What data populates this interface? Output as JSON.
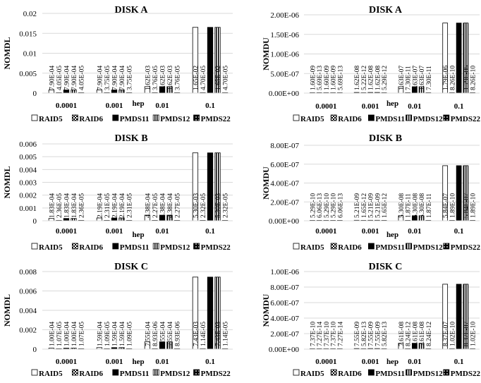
{
  "legend_names": [
    "RAID5",
    "RAID6",
    "PMDS11",
    "PMDS12",
    "PMDS22"
  ],
  "colors": {
    "axis": "#d9d9d9",
    "bar_stroke": "#000000",
    "solid": "#000000",
    "white": "#ffffff"
  },
  "chart_data": [
    {
      "type": "bar",
      "title": "DISK A",
      "ylabel": "NOMDL",
      "xlabel": "hep",
      "categories": [
        "0.0001",
        "0.001",
        "0.01",
        "0.1"
      ],
      "ylim": [
        0,
        0.02
      ],
      "yticks": [
        "0",
        "0.005",
        "0.01",
        "0.015",
        "0.02"
      ],
      "ytick_values": [
        0,
        0.005,
        0.01,
        0.015,
        0.02
      ],
      "legend": "bottom",
      "series": [
        {
          "name": "RAID5",
          "values": [
            0.00079,
            0.00079,
            0.00162,
            0.0165
          ],
          "labels": [
            "7.90E-04",
            "7.90E-04",
            "1.62E-03",
            "1.65E-02"
          ]
        },
        {
          "name": "RAID6",
          "values": [
            4.05e-05,
            3.75e-05,
            3.76e-05,
            4.7e-05
          ],
          "labels": [
            "4.05E-05",
            "3.75E-05",
            "3.76E-05",
            "4.70E-05"
          ]
        },
        {
          "name": "PMDS11",
          "values": [
            0.00079,
            0.00079,
            0.00162,
            0.0165
          ],
          "labels": [
            "7.90E-04",
            "7.90E-04",
            "1.62E-03",
            "1.65E-02"
          ]
        },
        {
          "name": "PMDS12",
          "values": [
            0.00079,
            0.00079,
            0.00162,
            0.0165
          ],
          "labels": [
            "7.90E-04",
            "7.90E-04",
            "1.62E-03",
            "1.65E-02"
          ]
        },
        {
          "name": "PMDS22",
          "values": [
            4.05e-05,
            3.75e-05,
            3.76e-05,
            4.7e-05
          ],
          "labels": [
            "4.05E-05",
            "3.75E-05",
            "3.76E-05",
            "4.70E-05"
          ]
        }
      ]
    },
    {
      "type": "bar",
      "title": "DISK A",
      "ylabel": "NOMDU",
      "xlabel": "hep",
      "categories": [
        "0.0001",
        "0.001",
        "0.01",
        "0.1"
      ],
      "ylim": [
        0,
        2e-06
      ],
      "yticks": [
        "0.00E+00",
        "5.00E-07",
        "1.00E-06",
        "1.50E-06",
        "2.00E-06"
      ],
      "ytick_values": [
        0,
        5e-07,
        1e-06,
        1.5e-06,
        2e-06
      ],
      "legend": "bottom",
      "series": [
        {
          "name": "RAID5",
          "values": [
            1.6e-09,
            1.62e-08,
            1.63e-07,
            1.79e-06
          ],
          "labels": [
            "1.60E-09",
            "1.62E-08",
            "1.63E-07",
            "1.79E-06"
          ]
        },
        {
          "name": "RAID6",
          "values": [
            5.69e-13,
            5.22e-12,
            7.3e-11,
            8.26e-10
          ],
          "labels": [
            "5.69E-13",
            "5.22E-12",
            "7.30E-11",
            "8.26E-10"
          ]
        },
        {
          "name": "PMDS11",
          "values": [
            1.6e-09,
            1.62e-08,
            1.63e-07,
            1.79e-06
          ],
          "labels": [
            "1.60E-09",
            "1.62E-08",
            "1.63E-07",
            "1.79E-06"
          ]
        },
        {
          "name": "PMDS12",
          "values": [
            1.6e-09,
            1.62e-08,
            1.63e-07,
            1.79e-06
          ],
          "labels": [
            "1.60E-09",
            "1.62E-08",
            "1.63E-07",
            "1.79E-06"
          ]
        },
        {
          "name": "PMDS22",
          "values": [
            5.69e-13,
            5.29e-12,
            7.3e-11,
            8.26e-10
          ],
          "labels": [
            "5.69E-13",
            "5.29E-12",
            "7.30E-11",
            "8.26E-10"
          ]
        }
      ]
    },
    {
      "type": "bar",
      "title": "DISK B",
      "ylabel": "NOMDL",
      "xlabel": "hep",
      "categories": [
        "0.0001",
        "0.001",
        "0.01",
        "0.1"
      ],
      "ylim": [
        0,
        0.006
      ],
      "yticks": [
        "0",
        "0.001",
        "0.002",
        "0.003",
        "0.004",
        "0.005",
        "0.006"
      ],
      "ytick_values": [
        0,
        0.001,
        0.002,
        0.003,
        0.004,
        0.005,
        0.006
      ],
      "legend": "bottom",
      "series": [
        {
          "name": "RAID5",
          "values": [
            0.000183,
            0.000219,
            0.000438,
            0.0053
          ],
          "labels": [
            "1.83E-04",
            "2.19E-04",
            "4.38E-04",
            "5.30E-03"
          ]
        },
        {
          "name": "RAID6",
          "values": [
            2.36e-05,
            2.31e-05,
            2.27e-05,
            2.32e-05
          ],
          "labels": [
            "2.36E-05",
            "2.31E-05",
            "2.27E-05",
            "2.32E-05"
          ]
        },
        {
          "name": "PMDS11",
          "values": [
            0.000183,
            0.000219,
            0.000438,
            0.0053
          ],
          "labels": [
            "1.83E-04",
            "2.19E-04",
            "4.38E-04",
            "5.30E-03"
          ]
        },
        {
          "name": "PMDS12",
          "values": [
            0.000183,
            0.000219,
            0.000438,
            0.0053
          ],
          "labels": [
            "1.83E-04",
            "2.19E-04",
            "4.38E-04",
            "5.30E-03"
          ]
        },
        {
          "name": "PMDS22",
          "values": [
            2.36e-05,
            2.31e-05,
            2.27e-05,
            2.32e-05
          ],
          "labels": [
            "2.36E-05",
            "2.31E-05",
            "2.27E-05",
            "2.32E-05"
          ]
        }
      ]
    },
    {
      "type": "bar",
      "title": "DISK B",
      "ylabel": "NOMDU",
      "xlabel": "hep",
      "categories": [
        "0.0001",
        "0.001",
        "0.01",
        "0.1"
      ],
      "ylim": [
        0,
        8e-07
      ],
      "yticks": [
        "0.00E+00",
        "2.00E-07",
        "4.00E-07",
        "6.00E-07",
        "8.00E-07"
      ],
      "ytick_values": [
        0,
        2e-07,
        4e-07,
        6e-07,
        8e-07
      ],
      "legend": "bottom",
      "series": [
        {
          "name": "RAID5",
          "values": [
            5.29e-10,
            5.21e-09,
            5.3e-08,
            5.84e-07
          ],
          "labels": [
            "5.29E-10",
            "5.21E-09",
            "5.30E-08",
            "5.84E-07"
          ]
        },
        {
          "name": "RAID6",
          "values": [
            6.06e-13,
            1.65e-12,
            1.87e-11,
            1.89e-10
          ],
          "labels": [
            "6.06E-13",
            "1.65E-12",
            "1.87E-11",
            "1.89E-10"
          ]
        },
        {
          "name": "PMDS11",
          "values": [
            5.29e-10,
            5.21e-09,
            5.3e-08,
            5.84e-07
          ],
          "labels": [
            "5.29E-10",
            "5.21E-09",
            "5.30E-08",
            "5.84E-07"
          ]
        },
        {
          "name": "PMDS12",
          "values": [
            5.29e-10,
            5.21e-09,
            5.3e-08,
            5.84e-07
          ],
          "labels": [
            "5.29E-10",
            "5.21E-09",
            "5.30E-08",
            "5.84E-07"
          ]
        },
        {
          "name": "PMDS22",
          "values": [
            6.06e-13,
            1.65e-12,
            1.87e-11,
            1.89e-10
          ],
          "labels": [
            "6.06E-13",
            "1.65E-12",
            "1.87E-11",
            "1.89E-10"
          ]
        }
      ]
    },
    {
      "type": "bar",
      "title": "DISK C",
      "ylabel": "NOMDL",
      "xlabel": "hep",
      "categories": [
        "0.0001",
        "0.001",
        "0.01",
        "0.1"
      ],
      "ylim": [
        0,
        0.008
      ],
      "yticks": [
        "0",
        "0.002",
        "0.004",
        "0.006",
        "0.008"
      ],
      "ytick_values": [
        0,
        0.002,
        0.004,
        0.006,
        0.008
      ],
      "legend": "bottom",
      "series": [
        {
          "name": "RAID5",
          "values": [
            0.0001,
            0.000159,
            0.000755,
            0.00743
          ],
          "labels": [
            "1.00E-04",
            "1.59E-04",
            "7.55E-04",
            "7.43E-03"
          ]
        },
        {
          "name": "RAID6",
          "values": [
            1.07e-05,
            1.09e-05,
            8.93e-06,
            1.14e-05
          ],
          "labels": [
            "1.07E-05",
            "1.09E-05",
            "8.93E-06",
            "1.14E-05"
          ]
        },
        {
          "name": "PMDS11",
          "values": [
            0.0001,
            0.000159,
            0.000755,
            0.00743
          ],
          "labels": [
            "1.00E-04",
            "1.59E-04",
            "7.55E-04",
            "7.43E-03"
          ]
        },
        {
          "name": "PMDS12",
          "values": [
            0.0001,
            0.000159,
            0.000755,
            0.00743
          ],
          "labels": [
            "1.00E-04",
            "1.59E-04",
            "7.55E-04",
            "7.43E-03"
          ]
        },
        {
          "name": "PMDS22",
          "values": [
            1.07e-05,
            1.09e-05,
            8.93e-06,
            1.14e-05
          ],
          "labels": [
            "1.07E-05",
            "1.09E-05",
            "8.93E-06",
            "1.14E-05"
          ]
        }
      ]
    },
    {
      "type": "bar",
      "title": "DISK C",
      "ylabel": "NOMDU",
      "xlabel": "hep",
      "categories": [
        "0.0001",
        "0.001",
        "0.01",
        "0.1"
      ],
      "ylim": [
        0,
        1e-06
      ],
      "yticks": [
        "0.00E+00",
        "2.00E-07",
        "4.00E-07",
        "6.00E-07",
        "8.00E-07",
        "1.00E-06"
      ],
      "ytick_values": [
        0,
        2e-07,
        4e-07,
        6e-07,
        8e-07,
        1e-06
      ],
      "legend": "bottom",
      "series": [
        {
          "name": "RAID5",
          "values": [
            7.37e-10,
            7.55e-09,
            7.61e-08,
            8.37e-07
          ],
          "labels": [
            "7.37E-10",
            "7.55E-09",
            "7.61E-08",
            "8.37E-07"
          ]
        },
        {
          "name": "RAID6",
          "values": [
            7.27e-14,
            5.82e-13,
            8.24e-12,
            1.02e-10
          ],
          "labels": [
            "7.27E-14",
            "5.82E-13",
            "8.24E-12",
            "1.02E-10"
          ]
        },
        {
          "name": "PMDS11",
          "values": [
            7.37e-10,
            7.55e-09,
            7.61e-08,
            8.37e-07
          ],
          "labels": [
            "7.37E-10",
            "7.55E-09",
            "7.61E-08",
            "8.37E-07"
          ]
        },
        {
          "name": "PMDS12",
          "values": [
            7.37e-10,
            7.55e-09,
            7.61e-08,
            8.37e-07
          ],
          "labels": [
            "7.37E-10",
            "7.55E-09",
            "7.61E-08",
            "8.37E-07"
          ]
        },
        {
          "name": "PMDS22",
          "values": [
            7.27e-14,
            5.82e-13,
            8.24e-12,
            1.02e-10
          ],
          "labels": [
            "7.27E-14",
            "5.82E-13",
            "8.24E-12",
            "1.02E-10"
          ]
        }
      ]
    }
  ]
}
